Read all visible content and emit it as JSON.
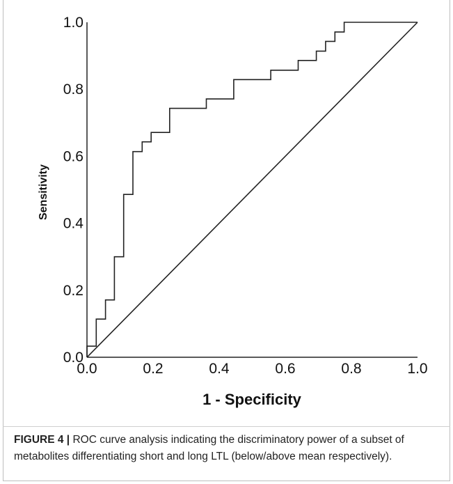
{
  "chart_data": {
    "type": "line",
    "xlabel": "1 - Specificity",
    "ylabel": "Sensitivity",
    "xlim": [
      0.0,
      1.0
    ],
    "ylim": [
      0.0,
      1.0
    ],
    "x_ticks": [
      "0.0",
      "0.2",
      "0.4",
      "0.6",
      "0.8",
      "1.0"
    ],
    "y_ticks": [
      "0.0",
      "0.2",
      "0.4",
      "0.6",
      "0.8",
      "1.0"
    ],
    "grid": false,
    "series": [
      {
        "x": [
          0,
          0,
          0.028,
          0.028,
          0.056,
          0.056,
          0.083,
          0.083,
          0.111,
          0.111,
          0.139,
          0.139,
          0.167,
          0.167,
          0.194,
          0.194,
          0.25,
          0.25,
          0.361,
          0.361,
          0.444,
          0.444,
          0.556,
          0.556,
          0.639,
          0.639,
          0.694,
          0.694,
          0.722,
          0.722,
          0.75,
          0.75,
          0.778,
          0.778,
          0.806,
          0.806,
          1.0
        ],
        "y": [
          0,
          0.033,
          0.033,
          0.114,
          0.114,
          0.171,
          0.171,
          0.3,
          0.3,
          0.486,
          0.486,
          0.614,
          0.614,
          0.643,
          0.643,
          0.671,
          0.671,
          0.743,
          0.743,
          0.771,
          0.771,
          0.829,
          0.829,
          0.857,
          0.857,
          0.886,
          0.886,
          0.914,
          0.914,
          0.943,
          0.943,
          0.971,
          0.971,
          1.0,
          1.0,
          1.0,
          1.0
        ],
        "color": "#222222"
      },
      {
        "x": [
          0,
          1.0
        ],
        "y": [
          0,
          1.0
        ],
        "color": "#222222"
      }
    ]
  },
  "caption": {
    "label": "FIGURE 4 |",
    "text": "ROC curve analysis indicating the discriminatory power of a subset of metabolites differentiating short and long LTL (below/above mean respectively)."
  }
}
